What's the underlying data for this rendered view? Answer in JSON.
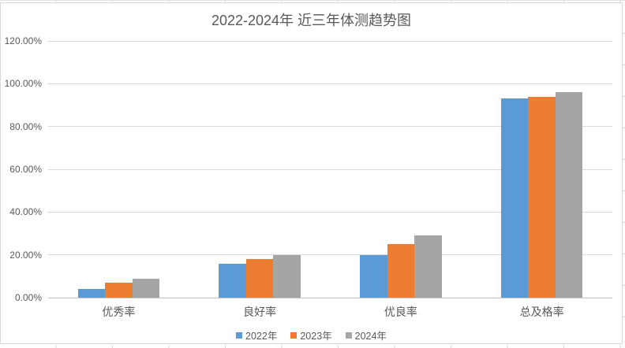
{
  "chart_data": {
    "type": "bar",
    "title": "2022-2024年 近三年体测趋势图",
    "categories": [
      "优秀率",
      "良好率",
      "优良率",
      "总及格率"
    ],
    "series": [
      {
        "name": "2022年",
        "color": "#5B9BD5",
        "values_pct": [
          4,
          16,
          20,
          93
        ]
      },
      {
        "name": "2023年",
        "color": "#ED7D31",
        "values_pct": [
          7,
          18,
          25,
          94
        ]
      },
      {
        "name": "2024年",
        "color": "#A5A5A5",
        "values_pct": [
          9,
          20,
          29,
          96
        ]
      }
    ],
    "y_axis": {
      "min_pct": 0,
      "max_pct": 120,
      "tick_step_pct": 20,
      "tick_labels": [
        "0.00%",
        "20.00%",
        "40.00%",
        "60.00%",
        "80.00%",
        "100.00%",
        "120.00%"
      ]
    },
    "x_axis_labels": [
      "优秀率",
      "良好率",
      "优良率",
      "总及格率"
    ],
    "grid": true,
    "legend": {
      "position": "bottom",
      "entries": [
        "2022年",
        "2023年",
        "2024年"
      ]
    }
  },
  "colors": {
    "grid_line": "#D9D9D9",
    "axis_line": "#BFBFBF",
    "text": "#595959",
    "series_2022": "#5B9BD5",
    "series_2023": "#ED7D31",
    "series_2024": "#A5A5A5"
  }
}
